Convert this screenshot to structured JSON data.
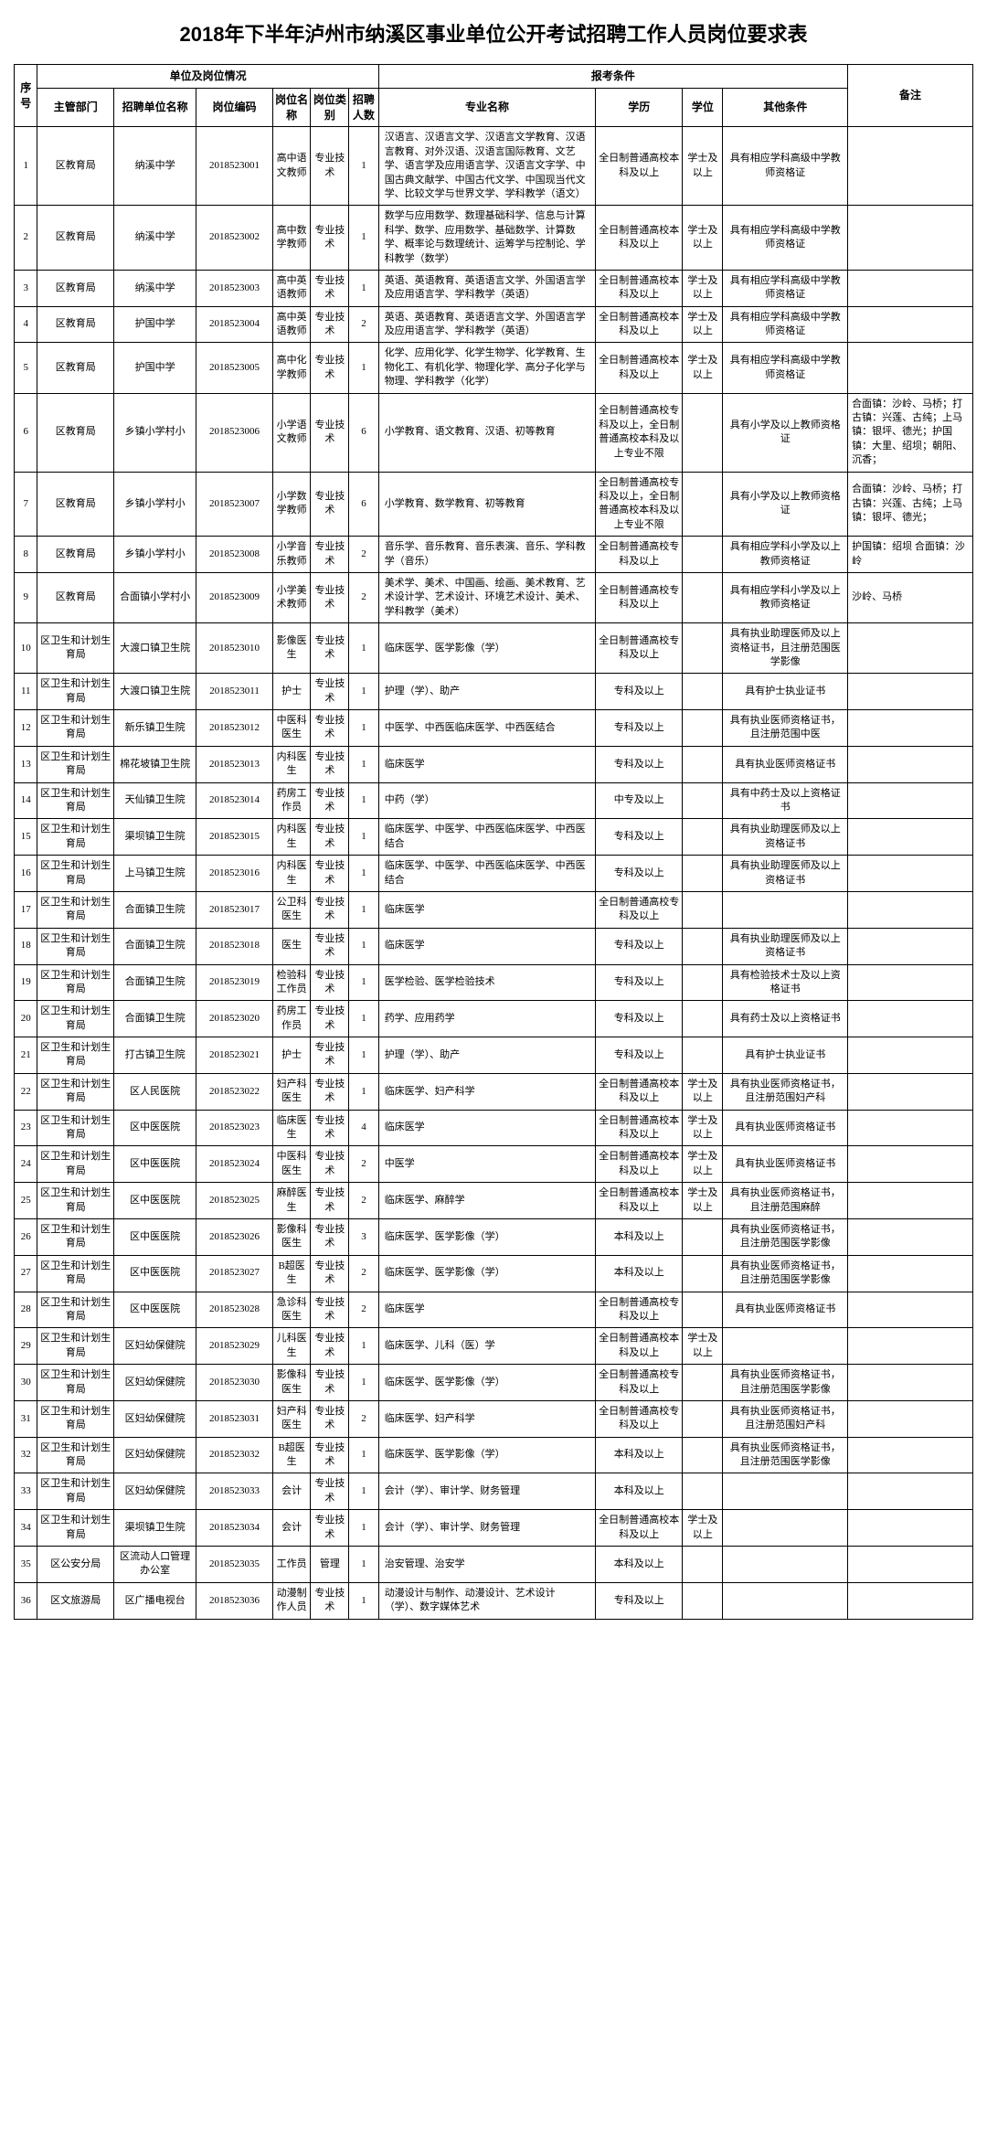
{
  "title": "2018年下半年泸州市纳溪区事业单位公开考试招聘工作人员岗位要求表",
  "group_headers": {
    "seq": "序号",
    "unit_info": "单位及岗位情况",
    "apply_cond": "报考条件",
    "remark": "备注"
  },
  "headers": {
    "dept": "主管部门",
    "unit": "招聘单位名称",
    "code": "岗位编码",
    "pos": "岗位名称",
    "cat": "岗位类别",
    "num": "招聘人数",
    "major": "专业名称",
    "edu": "学历",
    "deg": "学位",
    "other": "其他条件"
  },
  "rows": [
    {
      "seq": "1",
      "dept": "区教育局",
      "unit": "纳溪中学",
      "code": "2018523001",
      "pos": "高中语文教师",
      "cat": "专业技术",
      "num": "1",
      "major": "汉语言、汉语言文学、汉语言文学教育、汉语言教育、对外汉语、汉语言国际教育、文艺学、语言学及应用语言学、汉语言文字学、中国古典文献学、中国古代文学、中国现当代文学、比较文学与世界文学、学科教学（语文）",
      "edu": "全日制普通高校本科及以上",
      "deg": "学士及以上",
      "other": "具有相应学科高级中学教师资格证",
      "remark": ""
    },
    {
      "seq": "2",
      "dept": "区教育局",
      "unit": "纳溪中学",
      "code": "2018523002",
      "pos": "高中数学教师",
      "cat": "专业技术",
      "num": "1",
      "major": "数学与应用数学、数理基础科学、信息与计算科学、数学、应用数学、基础数学、计算数学、概率论与数理统计、运筹学与控制论、学科教学（数学）",
      "edu": "全日制普通高校本科及以上",
      "deg": "学士及以上",
      "other": "具有相应学科高级中学教师资格证",
      "remark": ""
    },
    {
      "seq": "3",
      "dept": "区教育局",
      "unit": "纳溪中学",
      "code": "2018523003",
      "pos": "高中英语教师",
      "cat": "专业技术",
      "num": "1",
      "major": "英语、英语教育、英语语言文学、外国语言学及应用语言学、学科教学（英语）",
      "edu": "全日制普通高校本科及以上",
      "deg": "学士及以上",
      "other": "具有相应学科高级中学教师资格证",
      "remark": ""
    },
    {
      "seq": "4",
      "dept": "区教育局",
      "unit": "护国中学",
      "code": "2018523004",
      "pos": "高中英语教师",
      "cat": "专业技术",
      "num": "2",
      "major": "英语、英语教育、英语语言文学、外国语言学及应用语言学、学科教学（英语）",
      "edu": "全日制普通高校本科及以上",
      "deg": "学士及以上",
      "other": "具有相应学科高级中学教师资格证",
      "remark": ""
    },
    {
      "seq": "5",
      "dept": "区教育局",
      "unit": "护国中学",
      "code": "2018523005",
      "pos": "高中化学教师",
      "cat": "专业技术",
      "num": "1",
      "major": "化学、应用化学、化学生物学、化学教育、生物化工、有机化学、物理化学、高分子化学与物理、学科教学（化学）",
      "edu": "全日制普通高校本科及以上",
      "deg": "学士及以上",
      "other": "具有相应学科高级中学教师资格证",
      "remark": ""
    },
    {
      "seq": "6",
      "dept": "区教育局",
      "unit": "乡镇小学村小",
      "code": "2018523006",
      "pos": "小学语文教师",
      "cat": "专业技术",
      "num": "6",
      "major": "小学教育、语文教育、汉语、初等教育",
      "edu": "全日制普通高校专科及以上，全日制普通高校本科及以上专业不限",
      "deg": "",
      "other": "具有小学及以上教师资格证",
      "remark": "合面镇：沙岭、马桥；打古镇：兴莲、古纯；上马镇：银坪、德光；护国镇：大里、绍坝；朝阳、沉香；"
    },
    {
      "seq": "7",
      "dept": "区教育局",
      "unit": "乡镇小学村小",
      "code": "2018523007",
      "pos": "小学数学教师",
      "cat": "专业技术",
      "num": "6",
      "major": "小学教育、数学教育、初等教育",
      "edu": "全日制普通高校专科及以上，全日制普通高校本科及以上专业不限",
      "deg": "",
      "other": "具有小学及以上教师资格证",
      "remark": "合面镇：沙岭、马桥；打古镇：兴莲、古纯；上马镇：银坪、德光；"
    },
    {
      "seq": "8",
      "dept": "区教育局",
      "unit": "乡镇小学村小",
      "code": "2018523008",
      "pos": "小学音乐教师",
      "cat": "专业技术",
      "num": "2",
      "major": "音乐学、音乐教育、音乐表演、音乐、学科教学（音乐）",
      "edu": "全日制普通高校专科及以上",
      "deg": "",
      "other": "具有相应学科小学及以上教师资格证",
      "remark": "护国镇：绍坝 合面镇：沙岭"
    },
    {
      "seq": "9",
      "dept": "区教育局",
      "unit": "合面镇小学村小",
      "code": "2018523009",
      "pos": "小学美术教师",
      "cat": "专业技术",
      "num": "2",
      "major": "美术学、美术、中国画、绘画、美术教育、艺术设计学、艺术设计、环境艺术设计、美术、学科教学（美术）",
      "edu": "全日制普通高校专科及以上",
      "deg": "",
      "other": "具有相应学科小学及以上教师资格证",
      "remark": "沙岭、马桥"
    },
    {
      "seq": "10",
      "dept": "区卫生和计划生育局",
      "unit": "大渡口镇卫生院",
      "code": "2018523010",
      "pos": "影像医生",
      "cat": "专业技术",
      "num": "1",
      "major": "临床医学、医学影像（学）",
      "edu": "全日制普通高校专科及以上",
      "deg": "",
      "other": "具有执业助理医师及以上资格证书，且注册范围医学影像",
      "remark": ""
    },
    {
      "seq": "11",
      "dept": "区卫生和计划生育局",
      "unit": "大渡口镇卫生院",
      "code": "2018523011",
      "pos": "护士",
      "cat": "专业技术",
      "num": "1",
      "major": "护理（学）、助产",
      "edu": "专科及以上",
      "deg": "",
      "other": "具有护士执业证书",
      "remark": ""
    },
    {
      "seq": "12",
      "dept": "区卫生和计划生育局",
      "unit": "新乐镇卫生院",
      "code": "2018523012",
      "pos": "中医科医生",
      "cat": "专业技术",
      "num": "1",
      "major": "中医学、中西医临床医学、中西医结合",
      "edu": "专科及以上",
      "deg": "",
      "other": "具有执业医师资格证书，且注册范围中医",
      "remark": ""
    },
    {
      "seq": "13",
      "dept": "区卫生和计划生育局",
      "unit": "棉花坡镇卫生院",
      "code": "2018523013",
      "pos": "内科医生",
      "cat": "专业技术",
      "num": "1",
      "major": "临床医学",
      "edu": "专科及以上",
      "deg": "",
      "other": "具有执业医师资格证书",
      "remark": ""
    },
    {
      "seq": "14",
      "dept": "区卫生和计划生育局",
      "unit": "天仙镇卫生院",
      "code": "2018523014",
      "pos": "药房工作员",
      "cat": "专业技术",
      "num": "1",
      "major": "中药（学）",
      "edu": "中专及以上",
      "deg": "",
      "other": "具有中药士及以上资格证书",
      "remark": ""
    },
    {
      "seq": "15",
      "dept": "区卫生和计划生育局",
      "unit": "渠坝镇卫生院",
      "code": "2018523015",
      "pos": "内科医生",
      "cat": "专业技术",
      "num": "1",
      "major": "临床医学、中医学、中西医临床医学、中西医结合",
      "edu": "专科及以上",
      "deg": "",
      "other": "具有执业助理医师及以上资格证书",
      "remark": ""
    },
    {
      "seq": "16",
      "dept": "区卫生和计划生育局",
      "unit": "上马镇卫生院",
      "code": "2018523016",
      "pos": "内科医生",
      "cat": "专业技术",
      "num": "1",
      "major": "临床医学、中医学、中西医临床医学、中西医结合",
      "edu": "专科及以上",
      "deg": "",
      "other": "具有执业助理医师及以上资格证书",
      "remark": ""
    },
    {
      "seq": "17",
      "dept": "区卫生和计划生育局",
      "unit": "合面镇卫生院",
      "code": "2018523017",
      "pos": "公卫科医生",
      "cat": "专业技术",
      "num": "1",
      "major": "临床医学",
      "edu": "全日制普通高校专科及以上",
      "deg": "",
      "other": "",
      "remark": ""
    },
    {
      "seq": "18",
      "dept": "区卫生和计划生育局",
      "unit": "合面镇卫生院",
      "code": "2018523018",
      "pos": "医生",
      "cat": "专业技术",
      "num": "1",
      "major": "临床医学",
      "edu": "专科及以上",
      "deg": "",
      "other": "具有执业助理医师及以上资格证书",
      "remark": ""
    },
    {
      "seq": "19",
      "dept": "区卫生和计划生育局",
      "unit": "合面镇卫生院",
      "code": "2018523019",
      "pos": "检验科工作员",
      "cat": "专业技术",
      "num": "1",
      "major": "医学检验、医学检验技术",
      "edu": "专科及以上",
      "deg": "",
      "other": "具有检验技术士及以上资格证书",
      "remark": ""
    },
    {
      "seq": "20",
      "dept": "区卫生和计划生育局",
      "unit": "合面镇卫生院",
      "code": "2018523020",
      "pos": "药房工作员",
      "cat": "专业技术",
      "num": "1",
      "major": "药学、应用药学",
      "edu": "专科及以上",
      "deg": "",
      "other": "具有药士及以上资格证书",
      "remark": ""
    },
    {
      "seq": "21",
      "dept": "区卫生和计划生育局",
      "unit": "打古镇卫生院",
      "code": "2018523021",
      "pos": "护士",
      "cat": "专业技术",
      "num": "1",
      "major": "护理（学）、助产",
      "edu": "专科及以上",
      "deg": "",
      "other": "具有护士执业证书",
      "remark": ""
    },
    {
      "seq": "22",
      "dept": "区卫生和计划生育局",
      "unit": "区人民医院",
      "code": "2018523022",
      "pos": "妇产科医生",
      "cat": "专业技术",
      "num": "1",
      "major": "临床医学、妇产科学",
      "edu": "全日制普通高校本科及以上",
      "deg": "学士及以上",
      "other": "具有执业医师资格证书，且注册范围妇产科",
      "remark": ""
    },
    {
      "seq": "23",
      "dept": "区卫生和计划生育局",
      "unit": "区中医医院",
      "code": "2018523023",
      "pos": "临床医生",
      "cat": "专业技术",
      "num": "4",
      "major": "临床医学",
      "edu": "全日制普通高校本科及以上",
      "deg": "学士及以上",
      "other": "具有执业医师资格证书",
      "remark": ""
    },
    {
      "seq": "24",
      "dept": "区卫生和计划生育局",
      "unit": "区中医医院",
      "code": "2018523024",
      "pos": "中医科医生",
      "cat": "专业技术",
      "num": "2",
      "major": "中医学",
      "edu": "全日制普通高校本科及以上",
      "deg": "学士及以上",
      "other": "具有执业医师资格证书",
      "remark": ""
    },
    {
      "seq": "25",
      "dept": "区卫生和计划生育局",
      "unit": "区中医医院",
      "code": "2018523025",
      "pos": "麻醉医生",
      "cat": "专业技术",
      "num": "2",
      "major": "临床医学、麻醉学",
      "edu": "全日制普通高校本科及以上",
      "deg": "学士及以上",
      "other": "具有执业医师资格证书，且注册范围麻醉",
      "remark": ""
    },
    {
      "seq": "26",
      "dept": "区卫生和计划生育局",
      "unit": "区中医医院",
      "code": "2018523026",
      "pos": "影像科医生",
      "cat": "专业技术",
      "num": "3",
      "major": "临床医学、医学影像（学）",
      "edu": "本科及以上",
      "deg": "",
      "other": "具有执业医师资格证书，且注册范围医学影像",
      "remark": ""
    },
    {
      "seq": "27",
      "dept": "区卫生和计划生育局",
      "unit": "区中医医院",
      "code": "2018523027",
      "pos": "B超医生",
      "cat": "专业技术",
      "num": "2",
      "major": "临床医学、医学影像（学）",
      "edu": "本科及以上",
      "deg": "",
      "other": "具有执业医师资格证书，且注册范围医学影像",
      "remark": ""
    },
    {
      "seq": "28",
      "dept": "区卫生和计划生育局",
      "unit": "区中医医院",
      "code": "2018523028",
      "pos": "急诊科医生",
      "cat": "专业技术",
      "num": "2",
      "major": "临床医学",
      "edu": "全日制普通高校专科及以上",
      "deg": "",
      "other": "具有执业医师资格证书",
      "remark": ""
    },
    {
      "seq": "29",
      "dept": "区卫生和计划生育局",
      "unit": "区妇幼保健院",
      "code": "2018523029",
      "pos": "儿科医生",
      "cat": "专业技术",
      "num": "1",
      "major": "临床医学、儿科（医）学",
      "edu": "全日制普通高校本科及以上",
      "deg": "学士及以上",
      "other": "",
      "remark": ""
    },
    {
      "seq": "30",
      "dept": "区卫生和计划生育局",
      "unit": "区妇幼保健院",
      "code": "2018523030",
      "pos": "影像科医生",
      "cat": "专业技术",
      "num": "1",
      "major": "临床医学、医学影像（学）",
      "edu": "全日制普通高校专科及以上",
      "deg": "",
      "other": "具有执业医师资格证书，且注册范围医学影像",
      "remark": ""
    },
    {
      "seq": "31",
      "dept": "区卫生和计划生育局",
      "unit": "区妇幼保健院",
      "code": "2018523031",
      "pos": "妇产科医生",
      "cat": "专业技术",
      "num": "2",
      "major": "临床医学、妇产科学",
      "edu": "全日制普通高校专科及以上",
      "deg": "",
      "other": "具有执业医师资格证书，且注册范围妇产科",
      "remark": ""
    },
    {
      "seq": "32",
      "dept": "区卫生和计划生育局",
      "unit": "区妇幼保健院",
      "code": "2018523032",
      "pos": "B超医生",
      "cat": "专业技术",
      "num": "1",
      "major": "临床医学、医学影像（学）",
      "edu": "本科及以上",
      "deg": "",
      "other": "具有执业医师资格证书，且注册范围医学影像",
      "remark": ""
    },
    {
      "seq": "33",
      "dept": "区卫生和计划生育局",
      "unit": "区妇幼保健院",
      "code": "2018523033",
      "pos": "会计",
      "cat": "专业技术",
      "num": "1",
      "major": "会计（学）、审计学、财务管理",
      "edu": "本科及以上",
      "deg": "",
      "other": "",
      "remark": ""
    },
    {
      "seq": "34",
      "dept": "区卫生和计划生育局",
      "unit": "渠坝镇卫生院",
      "code": "2018523034",
      "pos": "会计",
      "cat": "专业技术",
      "num": "1",
      "major": "会计（学）、审计学、财务管理",
      "edu": "全日制普通高校本科及以上",
      "deg": "学士及以上",
      "other": "",
      "remark": ""
    },
    {
      "seq": "35",
      "dept": "区公安分局",
      "unit": "区流动人口管理办公室",
      "code": "2018523035",
      "pos": "工作员",
      "cat": "管理",
      "num": "1",
      "major": "治安管理、治安学",
      "edu": "本科及以上",
      "deg": "",
      "other": "",
      "remark": ""
    },
    {
      "seq": "36",
      "dept": "区文旅游局",
      "unit": "区广播电视台",
      "code": "2018523036",
      "pos": "动漫制作人员",
      "cat": "专业技术",
      "num": "1",
      "major": "动漫设计与制作、动漫设计、艺术设计（学）、数字媒体艺术",
      "edu": "专科及以上",
      "deg": "",
      "other": "",
      "remark": ""
    }
  ]
}
